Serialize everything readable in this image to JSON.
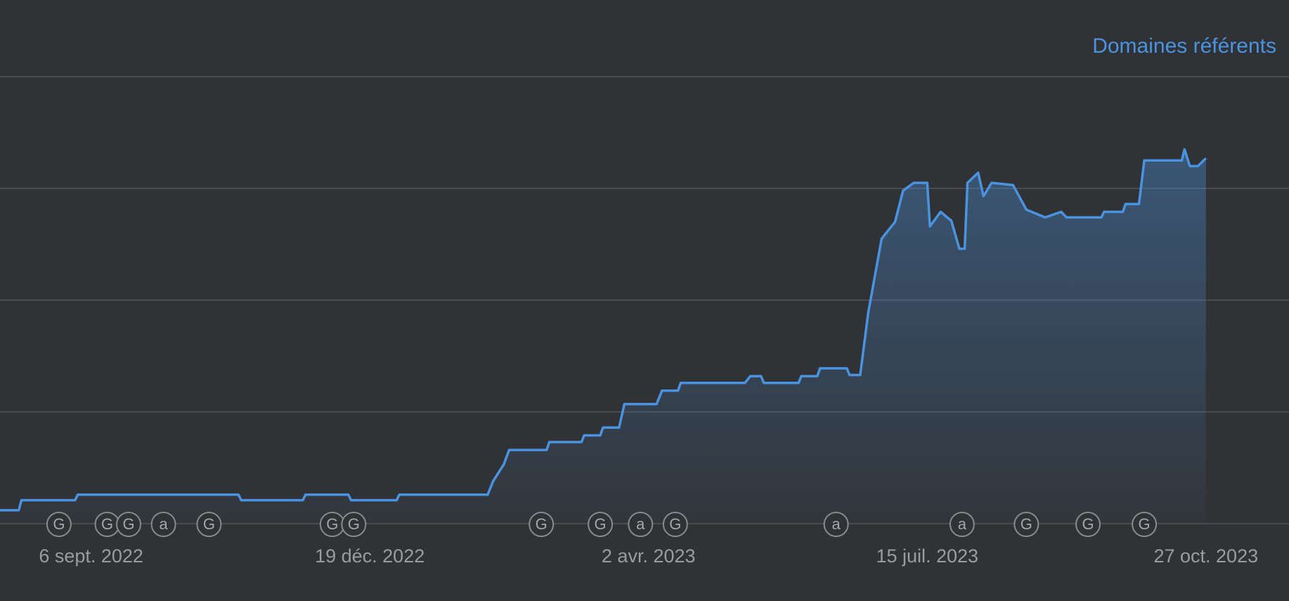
{
  "chart_data": {
    "type": "area",
    "legend": "top-right",
    "grid": true,
    "tick_labels": false,
    "xlim": [
      "2022-08-03",
      "2023-11-27"
    ],
    "xticks": [
      {
        "value": "2022-09-06",
        "label": "6 sept. 2022"
      },
      {
        "value": "2022-12-19",
        "label": "19 déc. 2022"
      },
      {
        "value": "2023-04-02",
        "label": "2 avr. 2023"
      },
      {
        "value": "2023-07-15",
        "label": "15 juil. 2023"
      },
      {
        "value": "2023-10-27",
        "label": "27 oct. 2023"
      }
    ],
    "ylim": [
      0,
      400
    ],
    "yticks": [
      0,
      100,
      200,
      300,
      400
    ],
    "x": [
      "2022-08-03",
      "2022-08-10",
      "2022-08-11",
      "2022-08-31",
      "2022-09-01",
      "2022-10-31",
      "2022-11-01",
      "2022-11-24",
      "2022-11-25",
      "2022-12-11",
      "2022-12-12",
      "2022-12-29",
      "2022-12-30",
      "2023-02-01",
      "2023-02-03",
      "2023-02-07",
      "2023-02-09",
      "2023-02-23",
      "2023-02-24",
      "2023-03-08",
      "2023-03-09",
      "2023-03-15",
      "2023-03-16",
      "2023-03-22",
      "2023-03-24",
      "2023-04-05",
      "2023-04-07",
      "2023-04-13",
      "2023-04-14",
      "2023-05-08",
      "2023-05-10",
      "2023-05-14",
      "2023-05-15",
      "2023-05-28",
      "2023-05-29",
      "2023-06-04",
      "2023-06-05",
      "2023-06-15",
      "2023-06-16",
      "2023-06-20",
      "2023-06-23",
      "2023-06-28",
      "2023-07-03",
      "2023-07-06",
      "2023-07-10",
      "2023-07-15",
      "2023-07-16",
      "2023-07-20",
      "2023-07-24",
      "2023-07-27",
      "2023-07-29",
      "2023-07-30",
      "2023-08-03",
      "2023-08-05",
      "2023-08-08",
      "2023-08-16",
      "2023-08-21",
      "2023-08-28",
      "2023-09-03",
      "2023-09-05",
      "2023-09-18",
      "2023-09-19",
      "2023-09-26",
      "2023-09-27",
      "2023-10-02",
      "2023-10-04",
      "2023-10-18",
      "2023-10-19",
      "2023-10-21",
      "2023-10-24",
      "2023-10-27"
    ],
    "series": [
      {
        "name": "Domaines référents",
        "color": "#4a93e0",
        "values": [
          12,
          12,
          21,
          21,
          26,
          26,
          21,
          21,
          26,
          26,
          21,
          21,
          26,
          26,
          38,
          53,
          66,
          66,
          73,
          73,
          79,
          79,
          86,
          86,
          107,
          107,
          119,
          119,
          126,
          126,
          132,
          132,
          126,
          126,
          132,
          132,
          139,
          139,
          133,
          133,
          189,
          255,
          270,
          298,
          305,
          305,
          266,
          279,
          271,
          246,
          246,
          305,
          314,
          293,
          305,
          303,
          281,
          274,
          279,
          274,
          274,
          279,
          279,
          286,
          286,
          325,
          325,
          335,
          320,
          320,
          327
        ]
      }
    ],
    "annotations": [
      {
        "x": "2022-08-25",
        "label": "G"
      },
      {
        "x": "2022-09-12",
        "label": "G"
      },
      {
        "x": "2022-09-20",
        "label": "G"
      },
      {
        "x": "2022-10-03",
        "label": "a"
      },
      {
        "x": "2022-10-20",
        "label": "G"
      },
      {
        "x": "2022-12-05",
        "label": "G"
      },
      {
        "x": "2022-12-13",
        "label": "G"
      },
      {
        "x": "2023-02-21",
        "label": "G"
      },
      {
        "x": "2023-03-15",
        "label": "G"
      },
      {
        "x": "2023-03-30",
        "label": "a"
      },
      {
        "x": "2023-04-12",
        "label": "G"
      },
      {
        "x": "2023-06-11",
        "label": "a"
      },
      {
        "x": "2023-07-28",
        "label": "a"
      },
      {
        "x": "2023-08-21",
        "label": "G"
      },
      {
        "x": "2023-09-13",
        "label": "G"
      },
      {
        "x": "2023-10-04",
        "label": "G"
      }
    ]
  }
}
